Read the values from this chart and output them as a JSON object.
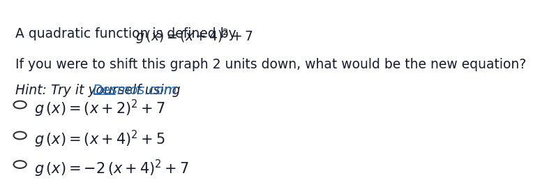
{
  "bg_color": "#ffffff",
  "text_color": "#1a1a2e",
  "line2": "If you were to shift this graph 2 units down, what would be the new equation?",
  "line3_plain": "Hint: Try it yourself using ",
  "line3_link": "Desmos.com",
  "link_color": "#1a6bbf",
  "options": [
    "$g\\,(x) = (x + 2)^2 + 7$",
    "$g\\,(x) = (x + 4)^2 + 5$",
    "$g\\,(x) = -2\\,(x + 4)^2 + 7$"
  ],
  "circle_color": "#333333",
  "font_size_header": 13.5,
  "font_size_options": 15
}
